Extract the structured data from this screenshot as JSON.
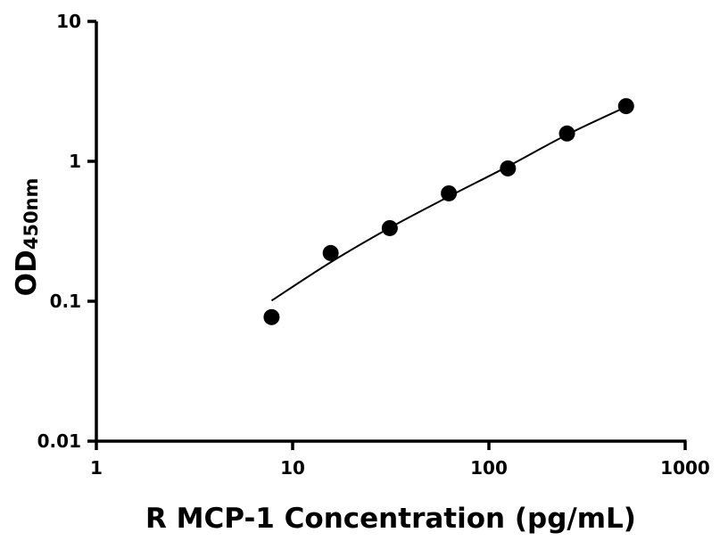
{
  "chart_data": {
    "type": "scatter",
    "title": "",
    "xlabel": "R MCP-1 Concentration (pg/mL)",
    "ylabel_main": "OD",
    "ylabel_sub": "450nm",
    "x_scale": "log",
    "y_scale": "log",
    "xlim": [
      1,
      1000
    ],
    "ylim": [
      0.01,
      10
    ],
    "x_ticks": [
      1,
      10,
      100,
      1000
    ],
    "x_tick_labels": [
      "1",
      "10",
      "100",
      "1000"
    ],
    "y_ticks": [
      0.01,
      0.1,
      1,
      10
    ],
    "y_tick_labels": [
      "0.01",
      "0.1",
      "1",
      "10"
    ],
    "grid": false,
    "legend": "none",
    "points": {
      "x": [
        7.8125,
        15.625,
        31.25,
        62.5,
        125,
        250,
        500
      ],
      "y": [
        0.077,
        0.221,
        0.333,
        0.59,
        0.89,
        1.58,
        2.48
      ]
    },
    "fit_curve": {
      "x": [
        7.8125,
        15.625,
        31.25,
        62.5,
        125,
        250,
        500
      ],
      "y": [
        0.101,
        0.19,
        0.335,
        0.56,
        0.92,
        1.55,
        2.45
      ]
    },
    "colors": {
      "points": "#000000",
      "curve": "#000000",
      "axes": "#000000"
    }
  }
}
